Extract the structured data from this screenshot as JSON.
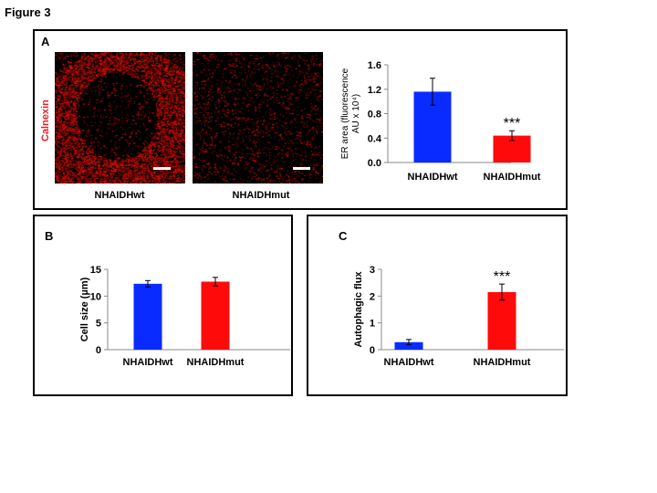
{
  "figure": {
    "title": "Figure 3"
  },
  "panels": {
    "A": {
      "letter": "A",
      "stain_label": "Calnexin",
      "images": [
        {
          "label": "NHAIDHwt"
        },
        {
          "label": "NHAIDHmut"
        }
      ]
    },
    "B": {
      "letter": "B"
    },
    "C": {
      "letter": "C"
    }
  },
  "colors": {
    "wt": "#0a2bff",
    "mut": "#ff0a0a",
    "stain": "#e8202a"
  },
  "chart_data": [
    {
      "id": "A",
      "type": "bar",
      "categories": [
        "NHAIDHwt",
        "NHAIDHmut"
      ],
      "values": [
        1.16,
        0.44
      ],
      "errors": [
        0.22,
        0.08
      ],
      "ylabel_lines": [
        "ER area (fluorescence",
        "AU x 10⁴)"
      ],
      "ylim": [
        0,
        1.6
      ],
      "yticks": [
        "0.0",
        "0.4",
        "0.8",
        "1.2",
        "1.6"
      ],
      "annotations": [
        "",
        "***"
      ],
      "colors": [
        "#0a2bff",
        "#ff0a0a"
      ]
    },
    {
      "id": "B",
      "type": "bar",
      "categories": [
        "NHAIDHwt",
        "NHAIDHmut"
      ],
      "values": [
        12.3,
        12.7
      ],
      "errors": [
        0.6,
        0.8
      ],
      "ylabel_lines": [
        "Cell size (µm)"
      ],
      "ylim": [
        0,
        15
      ],
      "yticks": [
        "0",
        "5",
        "10",
        "15"
      ],
      "annotations": [
        "",
        ""
      ],
      "colors": [
        "#0a2bff",
        "#ff0a0a"
      ]
    },
    {
      "id": "C",
      "type": "bar",
      "categories": [
        "NHAIDHwt",
        "NHAIDHmut"
      ],
      "values": [
        0.28,
        2.15
      ],
      "errors": [
        0.1,
        0.3
      ],
      "ylabel_lines": [
        "Autophagic flux"
      ],
      "ylim": [
        0,
        3
      ],
      "yticks": [
        "0",
        "1",
        "2",
        "3"
      ],
      "annotations": [
        "",
        "***"
      ],
      "colors": [
        "#0a2bff",
        "#ff0a0a"
      ]
    }
  ]
}
